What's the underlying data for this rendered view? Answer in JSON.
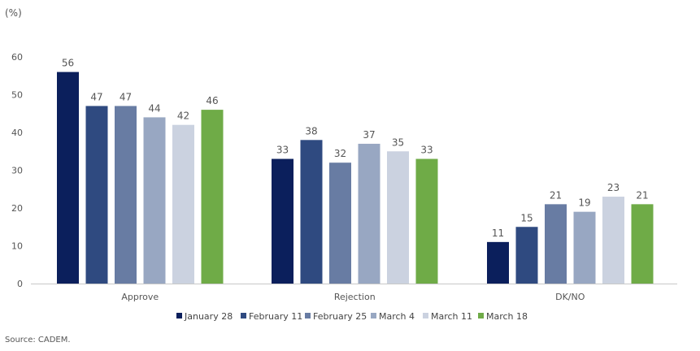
{
  "chart_data": {
    "type": "bar",
    "unit_label": "(%)",
    "categories": [
      "Approve",
      "Rejection",
      "DK/NO"
    ],
    "series": [
      {
        "name": "January 28",
        "color": "#0b1f5c",
        "values": [
          56,
          33,
          11
        ]
      },
      {
        "name": "February 11",
        "color": "#2f4a80",
        "values": [
          47,
          38,
          15
        ]
      },
      {
        "name": "February 25",
        "color": "#687ca3",
        "values": [
          47,
          32,
          21
        ]
      },
      {
        "name": "March 4",
        "color": "#98a7c2",
        "values": [
          44,
          37,
          19
        ]
      },
      {
        "name": "March 11",
        "color": "#cbd2e0",
        "values": [
          42,
          35,
          23
        ]
      },
      {
        "name": "March 18",
        "color": "#6fab47",
        "values": [
          46,
          33,
          21
        ]
      }
    ],
    "ylim": [
      0,
      60
    ],
    "yticks": [
      0,
      10,
      20,
      30,
      40,
      50,
      60
    ],
    "grid": false,
    "data_labels": true,
    "legend_position": "bottom"
  },
  "source": "Source: CADEM."
}
